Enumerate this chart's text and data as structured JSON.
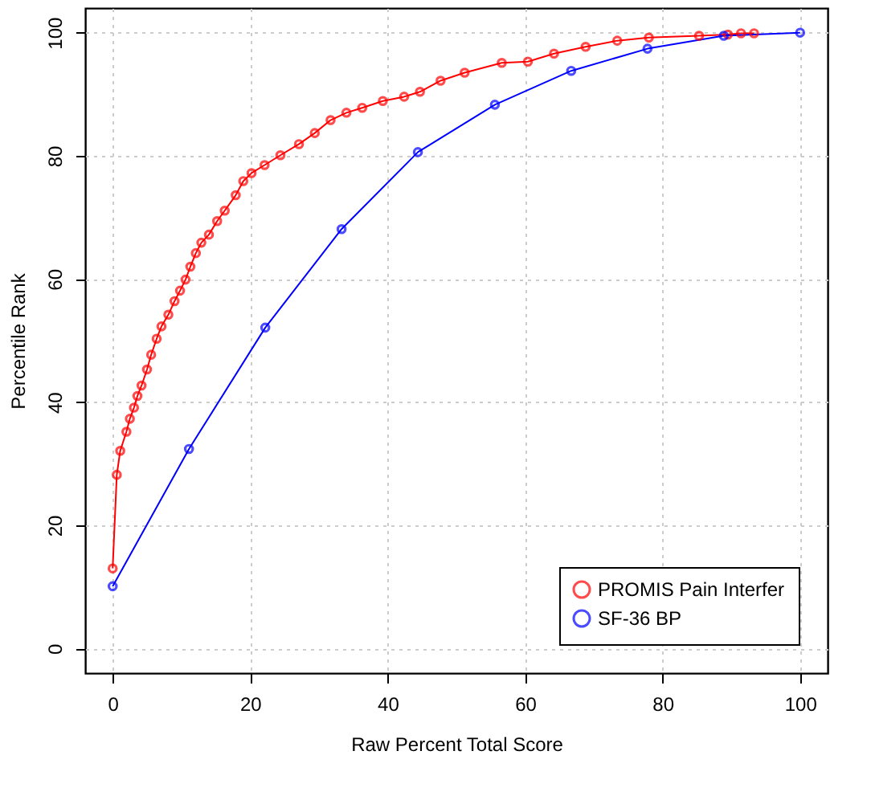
{
  "chart_data": {
    "type": "line",
    "xlabel": "Raw Percent Total Score",
    "ylabel": "Percentile Rank",
    "xlim": [
      -4,
      104
    ],
    "ylim": [
      -4,
      104
    ],
    "xticks": [
      0,
      20,
      40,
      60,
      80,
      100
    ],
    "yticks": [
      0,
      20,
      40,
      60,
      80,
      100
    ],
    "grid": true,
    "legend": "bottom right",
    "marker": "circle",
    "line_style": "solid",
    "series": [
      {
        "name": "PROMIS Pain Interfer",
        "color": "#ff0000",
        "x": [
          0,
          0.6,
          1.1,
          2.0,
          2.5,
          3.1,
          3.6,
          4.2,
          5.0,
          5.6,
          6.4,
          7.1,
          8.1,
          9.0,
          9.8,
          10.6,
          11.3,
          12.1,
          12.9,
          14.0,
          15.2,
          16.3,
          17.9,
          19.0,
          20.2,
          22.1,
          24.4,
          27.1,
          29.4,
          31.7,
          34.0,
          36.3,
          39.3,
          42.4,
          44.7,
          47.7,
          51.2,
          56.6,
          60.4,
          64.2,
          68.8,
          73.4,
          78.0,
          85.3,
          89.5,
          91.4,
          93.3
        ],
        "values": [
          13.0,
          28.2,
          32.1,
          35.2,
          37.3,
          39.1,
          41.0,
          42.7,
          45.3,
          47.7,
          50.3,
          52.3,
          54.2,
          56.4,
          58.1,
          59.9,
          62.0,
          64.2,
          65.9,
          67.2,
          69.4,
          71.1,
          73.6,
          75.9,
          77.2,
          78.5,
          80.1,
          81.9,
          83.7,
          85.8,
          87.0,
          87.8,
          88.9,
          89.6,
          90.4,
          92.2,
          93.5,
          95.1,
          95.3,
          96.6,
          97.7,
          98.7,
          99.2,
          99.5,
          99.7,
          99.9,
          99.9
        ]
      },
      {
        "name": "SF-36 BP",
        "color": "#0000ff",
        "x": [
          0,
          11.1,
          22.2,
          33.3,
          44.4,
          55.6,
          66.7,
          77.8,
          88.9,
          100
        ],
        "values": [
          10.1,
          32.4,
          52.1,
          68.1,
          80.6,
          88.3,
          93.8,
          97.4,
          99.5,
          100
        ]
      }
    ]
  }
}
